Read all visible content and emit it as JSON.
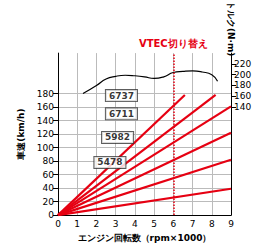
{
  "chart_data": {
    "type": "line",
    "xlabel": "エンジン回転数（rpm×1000）",
    "ylabel": "車速(km/h)",
    "y2label": "トルク(N·m)",
    "xlim": [
      0,
      9
    ],
    "xticks": [
      0,
      1,
      2,
      3,
      4,
      5,
      6,
      7,
      8,
      9
    ],
    "ylim": [
      0,
      240
    ],
    "yticks": [
      0,
      20,
      40,
      60,
      80,
      100,
      120,
      140,
      160,
      180
    ],
    "y2lim": [
      -60,
      240
    ],
    "y2ticks": [
      140,
      160,
      180,
      200,
      220
    ],
    "grid": true,
    "series": [
      {
        "x": [
          0,
          9
        ],
        "values": [
          0,
          39
        ],
        "color": "#e60012"
      },
      {
        "x": [
          0,
          9
        ],
        "values": [
          0,
          82
        ],
        "color": "#e60012"
      },
      {
        "x": [
          0,
          9
        ],
        "values": [
          0,
          122
        ],
        "color": "#e60012"
      },
      {
        "x": [
          0,
          9
        ],
        "values": [
          0,
          161
        ],
        "color": "#e60012"
      },
      {
        "x": [
          0,
          8.2
        ],
        "values": [
          0,
          178
        ],
        "color": "#e60012"
      },
      {
        "x": [
          0,
          6.6
        ],
        "values": [
          0,
          178
        ],
        "color": "#e60012"
      },
      {
        "axis": "y2",
        "color": "#000000",
        "x": [
          1.3,
          2,
          2.5,
          3,
          3.5,
          4,
          4.5,
          5,
          5.5,
          6,
          6.5,
          7,
          7.5,
          8,
          8.3
        ],
        "values": [
          165,
          180,
          192,
          197,
          199,
          198,
          196,
          193,
          196,
          204,
          206,
          207,
          205,
          200,
          188
        ]
      }
    ],
    "annotations": [
      {
        "text": "6737",
        "x": 3.3,
        "y": 177
      },
      {
        "text": "6711",
        "x": 3.3,
        "y": 150
      },
      {
        "text": "5982",
        "x": 3.1,
        "y": 115
      },
      {
        "text": "5478",
        "x": 2.7,
        "y": 78
      },
      {
        "text": "VTEC切り替え",
        "x": 6,
        "line_style": "dotted",
        "color": "#e60012"
      }
    ]
  }
}
